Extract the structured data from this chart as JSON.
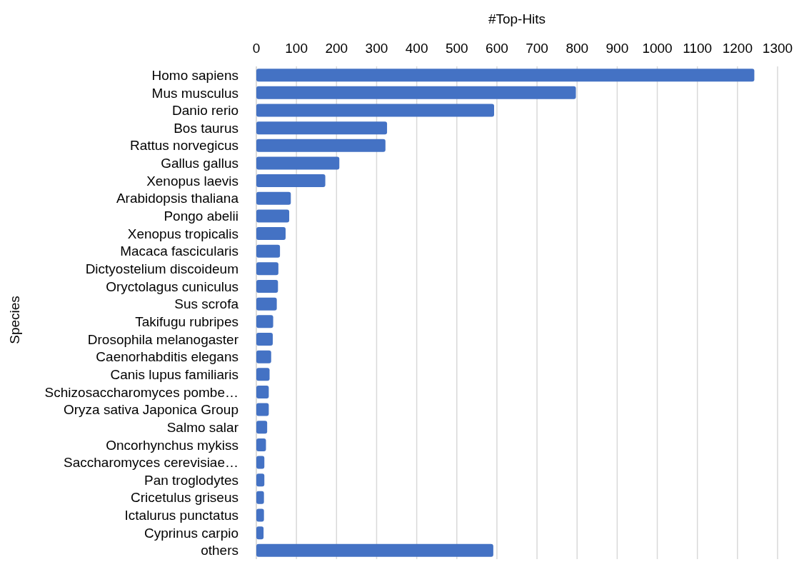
{
  "chart_data": {
    "type": "bar",
    "orientation": "horizontal",
    "xlabel": "#Top-Hits",
    "ylabel": "Species",
    "categories": [
      "Homo sapiens",
      "Mus musculus",
      "Danio rerio",
      "Bos taurus",
      "Rattus norvegicus",
      "Gallus gallus",
      "Xenopus laevis",
      "Arabidopsis thaliana",
      "Pongo abelii",
      "Xenopus tropicalis",
      "Macaca fascicularis",
      "Dictyostelium discoideum",
      "Oryctolagus cuniculus",
      "Sus scrofa",
      "Takifugu rubripes",
      "Drosophila melanogaster",
      "Caenorhabditis elegans",
      "Canis lupus familiaris",
      "Schizosaccharomyces pombe…",
      "Oryza sativa Japonica Group",
      "Salmo salar",
      "Oncorhynchus mykiss",
      "Saccharomyces cerevisiae…",
      "Pan troglodytes",
      "Cricetulus griseus",
      "Ictalurus punctatus",
      "Cyprinus carpio",
      "others"
    ],
    "values": [
      1242,
      797,
      593,
      326,
      322,
      207,
      172,
      86,
      82,
      73,
      59,
      55,
      54,
      51,
      42,
      41,
      37,
      33,
      31,
      31,
      27,
      24,
      20,
      20,
      19,
      19,
      18,
      591
    ],
    "color": "#4472c4",
    "xlim": [
      0,
      1300
    ],
    "xticks": [
      0,
      100,
      200,
      300,
      400,
      500,
      600,
      700,
      800,
      900,
      1000,
      1100,
      1200,
      1300
    ],
    "grid": "x"
  }
}
